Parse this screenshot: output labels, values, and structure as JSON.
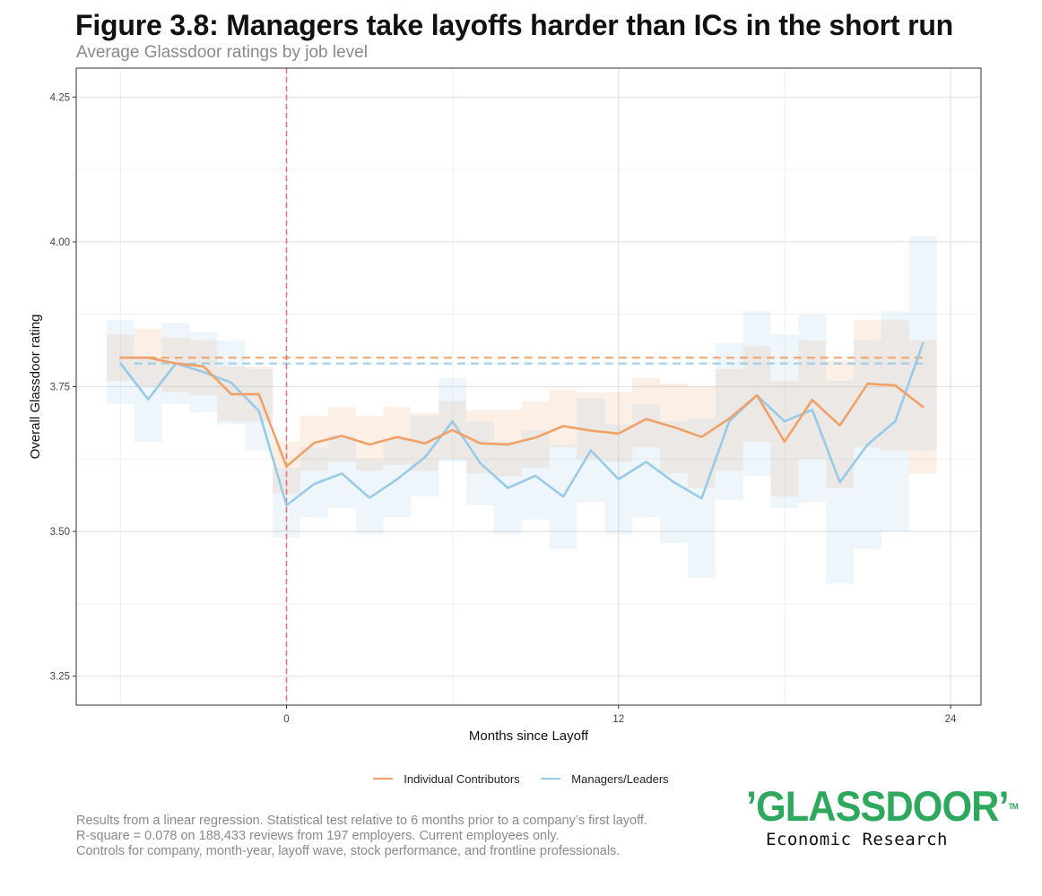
{
  "header": {
    "title": "Figure 3.8: Managers take layoffs harder than ICs in the short run",
    "subtitle": "Average Glassdoor ratings by job level"
  },
  "footnote": {
    "line1": "Results from a linear regression. Statistical test relative to 6 months prior to a company’s first layoff.",
    "line2": "R-square = 0.078 on 188,433 reviews from 197 employers. Current employees only.",
    "line3": "Controls for company, month-year, layoff wave, stock performance, and frontline professionals."
  },
  "logo": {
    "wordmark": "’GLASSDOOR’",
    "tm": "TM",
    "sub": "Economic Research",
    "color": "#2EA85C"
  },
  "chart_data": {
    "type": "line",
    "title": "Figure 3.8: Managers take layoffs harder than ICs in the short run",
    "subtitle": "Average Glassdoor ratings by job level",
    "xlabel": "Months since Layoff",
    "ylabel": "Overall Glassdoor rating",
    "xlim": [
      -7.6,
      25.1
    ],
    "ylim": [
      3.2,
      4.3
    ],
    "x_ticks": [
      0,
      12,
      24
    ],
    "x_tick_labels": [
      "0",
      "12",
      "24"
    ],
    "y_ticks": [
      3.25,
      3.5,
      3.75,
      4.0,
      4.25
    ],
    "y_tick_labels": [
      "3.25",
      "3.50",
      "3.75",
      "4.00",
      "4.25"
    ],
    "grid": true,
    "legend_position": "bottom",
    "layoff_marker": {
      "x": 0,
      "style": "dashed",
      "color": "#E8707A"
    },
    "x": [
      -6,
      -5,
      -4,
      -3,
      -2,
      -1,
      0,
      1,
      2,
      3,
      4,
      5,
      6,
      7,
      8,
      9,
      10,
      11,
      12,
      13,
      14,
      15,
      16,
      17,
      18,
      19,
      20,
      21,
      22,
      23
    ],
    "series": [
      {
        "name": "Individual Contributors",
        "color": "#F0A167",
        "baseline": 3.8,
        "values": [
          3.8,
          3.8,
          3.79,
          3.785,
          3.737,
          3.737,
          3.612,
          3.653,
          3.665,
          3.65,
          3.663,
          3.652,
          3.675,
          3.652,
          3.65,
          3.662,
          3.682,
          3.674,
          3.669,
          3.694,
          3.68,
          3.663,
          3.695,
          3.735,
          3.655,
          3.727,
          3.683,
          3.755,
          3.752,
          3.715
        ],
        "lower": [
          3.76,
          3.75,
          3.74,
          3.735,
          3.69,
          3.69,
          3.565,
          3.605,
          3.62,
          3.605,
          3.615,
          3.605,
          3.625,
          3.6,
          3.595,
          3.61,
          3.645,
          3.625,
          3.62,
          3.645,
          3.6,
          3.575,
          3.605,
          3.655,
          3.56,
          3.625,
          3.575,
          3.645,
          3.64,
          3.6
        ],
        "upper": [
          3.84,
          3.85,
          3.835,
          3.83,
          3.785,
          3.785,
          3.655,
          3.7,
          3.715,
          3.7,
          3.715,
          3.705,
          3.725,
          3.71,
          3.71,
          3.725,
          3.745,
          3.74,
          3.74,
          3.765,
          3.755,
          3.75,
          3.78,
          3.82,
          3.76,
          3.83,
          3.795,
          3.865,
          3.865,
          3.83
        ]
      },
      {
        "name": "Managers/Leaders",
        "color": "#98CBE8",
        "baseline": 3.79,
        "values": [
          3.79,
          3.728,
          3.79,
          3.775,
          3.757,
          3.708,
          3.545,
          3.582,
          3.6,
          3.558,
          3.59,
          3.628,
          3.69,
          3.618,
          3.575,
          3.596,
          3.56,
          3.64,
          3.59,
          3.62,
          3.585,
          3.557,
          3.69,
          3.735,
          3.69,
          3.71,
          3.585,
          3.65,
          3.69,
          3.825
        ],
        "lower": [
          3.72,
          3.655,
          3.72,
          3.705,
          3.685,
          3.64,
          3.49,
          3.525,
          3.54,
          3.495,
          3.525,
          3.56,
          3.62,
          3.545,
          3.495,
          3.52,
          3.47,
          3.55,
          3.495,
          3.525,
          3.48,
          3.42,
          3.555,
          3.595,
          3.54,
          3.55,
          3.41,
          3.47,
          3.5,
          3.64
        ],
        "upper": [
          3.865,
          3.8,
          3.86,
          3.845,
          3.83,
          3.78,
          3.61,
          3.645,
          3.665,
          3.625,
          3.66,
          3.7,
          3.765,
          3.69,
          3.655,
          3.675,
          3.65,
          3.73,
          3.685,
          3.72,
          3.69,
          3.695,
          3.825,
          3.88,
          3.84,
          3.875,
          3.76,
          3.83,
          3.88,
          4.01
        ]
      }
    ]
  }
}
